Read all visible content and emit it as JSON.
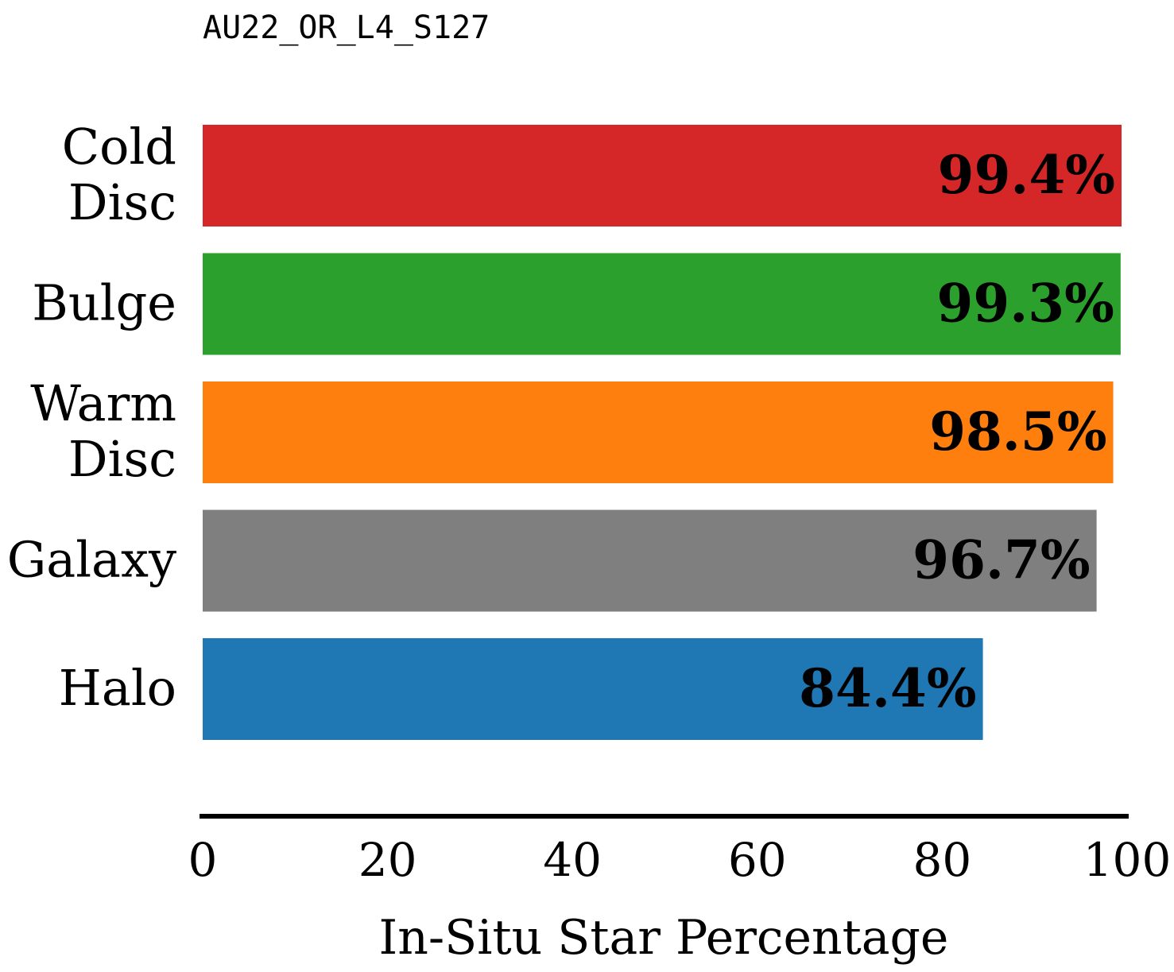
{
  "chart_data": {
    "type": "bar",
    "orientation": "horizontal",
    "title": "AU22_OR_L4_S127",
    "xlabel": "In-Situ Star Percentage",
    "ylabel": "",
    "xlim": [
      0,
      100
    ],
    "xticks": [
      0,
      20,
      40,
      60,
      80,
      100
    ],
    "grid": false,
    "categories": [
      {
        "label_lines": [
          "Cold",
          "Disc"
        ],
        "value": 99.4,
        "value_label": "99.4%",
        "color": "#d62728"
      },
      {
        "label_lines": [
          "Bulge"
        ],
        "value": 99.3,
        "value_label": "99.3%",
        "color": "#2ca02c"
      },
      {
        "label_lines": [
          "Warm",
          "Disc"
        ],
        "value": 98.5,
        "value_label": "98.5%",
        "color": "#ff7f0e"
      },
      {
        "label_lines": [
          "Galaxy"
        ],
        "value": 96.7,
        "value_label": "96.7%",
        "color": "#7f7f7f"
      },
      {
        "label_lines": [
          "Halo"
        ],
        "value": 84.4,
        "value_label": "84.4%",
        "color": "#1f77b4"
      }
    ]
  }
}
